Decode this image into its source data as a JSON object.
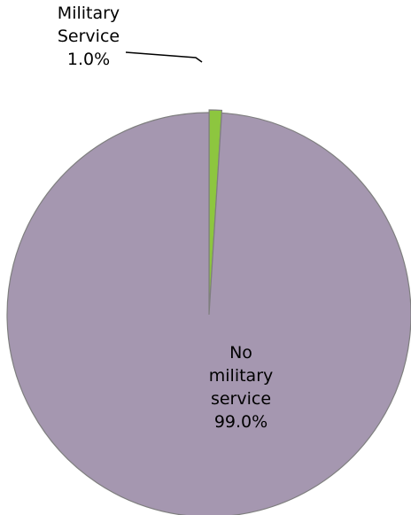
{
  "chart_data": {
    "type": "pie",
    "title": "",
    "slices": [
      {
        "label_lines": [
          "Military",
          "Service",
          "1.0%"
        ],
        "value": 1.0,
        "color": "#8DC63F"
      },
      {
        "label_lines": [
          "No",
          "military",
          "service",
          "99.0%"
        ],
        "value": 99.0,
        "color": "#A597B0"
      }
    ],
    "slice_outline_color": "#7F7F7F",
    "start_angle": "12 o'clock",
    "direction": "clockwise",
    "legend": "none"
  }
}
